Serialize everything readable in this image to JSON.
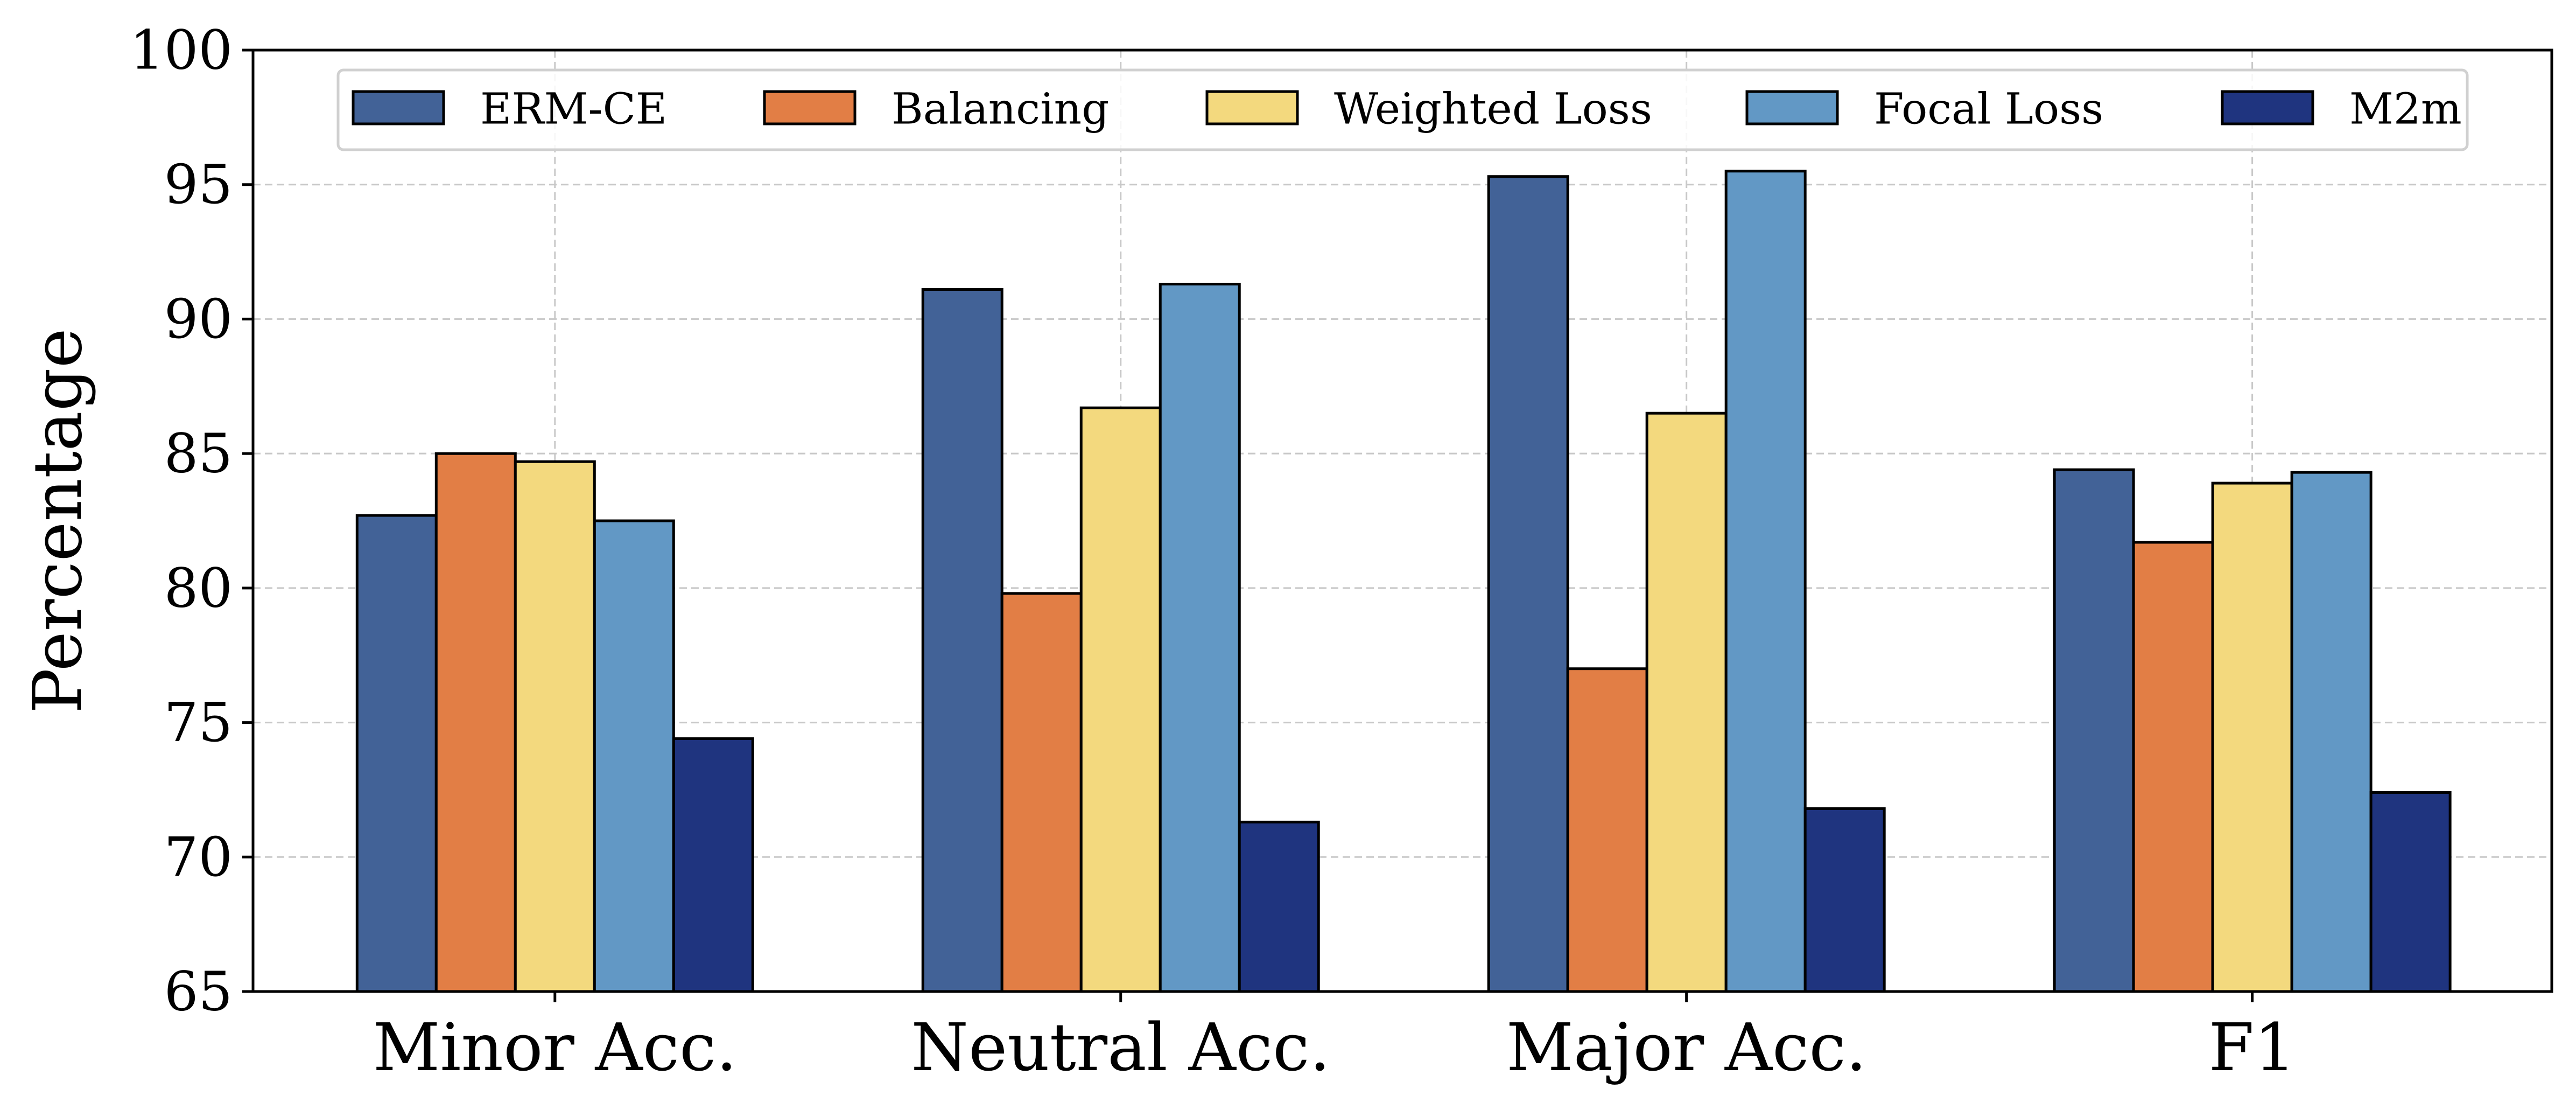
{
  "chart_data": {
    "type": "bar",
    "title": "",
    "xlabel": "",
    "ylabel": "Percentage",
    "ylim": [
      65,
      100
    ],
    "yticks": [
      65,
      70,
      75,
      80,
      85,
      90,
      95,
      100
    ],
    "grid": true,
    "legend_position": "top",
    "categories": [
      "Minor Acc.",
      "Neutral Acc.",
      "Major Acc.",
      "F1"
    ],
    "series": [
      {
        "name": "ERM-CE",
        "color": "#426297",
        "values": [
          82.7,
          91.1,
          95.3,
          84.4
        ]
      },
      {
        "name": "Balancing",
        "color": "#E27E45",
        "values": [
          85.0,
          79.8,
          77.0,
          81.7
        ]
      },
      {
        "name": "Weighted Loss",
        "color": "#F3D97E",
        "values": [
          84.7,
          86.7,
          86.5,
          83.9
        ]
      },
      {
        "name": "Focal Loss",
        "color": "#6298C5",
        "values": [
          82.5,
          91.3,
          95.5,
          84.3
        ]
      },
      {
        "name": "M2m",
        "color": "#1F347F",
        "values": [
          74.4,
          71.3,
          71.8,
          72.4
        ]
      }
    ]
  }
}
